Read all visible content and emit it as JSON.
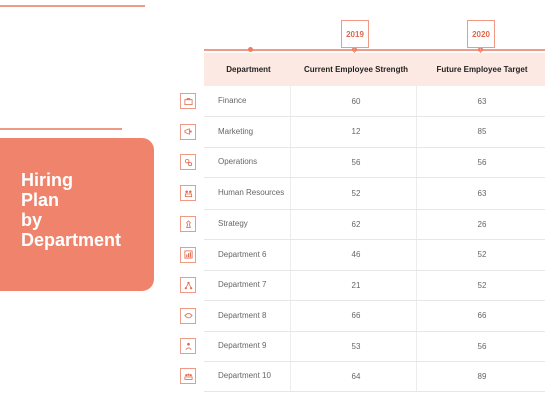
{
  "title": "Hiring\nPlan\nby\nDepartment",
  "timeline": {
    "years": [
      "2019",
      "2020"
    ]
  },
  "table": {
    "headers": {
      "department": "Department",
      "current": "Current Employee Strength",
      "future": "Future Employee Target"
    },
    "rows": [
      {
        "department": "Finance",
        "current": "60",
        "future": "63",
        "icon": "briefcase-icon"
      },
      {
        "department": "Marketing",
        "current": "12",
        "future": "85",
        "icon": "megaphone-icon"
      },
      {
        "department": "Operations",
        "current": "56",
        "future": "56",
        "icon": "gears-icon"
      },
      {
        "department": "Human Resources",
        "current": "52",
        "future": "63",
        "icon": "people-icon"
      },
      {
        "department": "Strategy",
        "current": "62",
        "future": "26",
        "icon": "chess-icon"
      },
      {
        "department": "Department 6",
        "current": "46",
        "future": "52",
        "icon": "chart-icon"
      },
      {
        "department": "Department 7",
        "current": "21",
        "future": "52",
        "icon": "network-icon"
      },
      {
        "department": "Department 8",
        "current": "66",
        "future": "66",
        "icon": "handshake-icon"
      },
      {
        "department": "Department 9",
        "current": "53",
        "future": "56",
        "icon": "team-icon"
      },
      {
        "department": "Department 10",
        "current": "64",
        "future": "89",
        "icon": "group-icon"
      }
    ]
  },
  "colors": {
    "accent": "#f0836b",
    "header_bg": "#fde9e4",
    "line": "#ef9a86"
  }
}
